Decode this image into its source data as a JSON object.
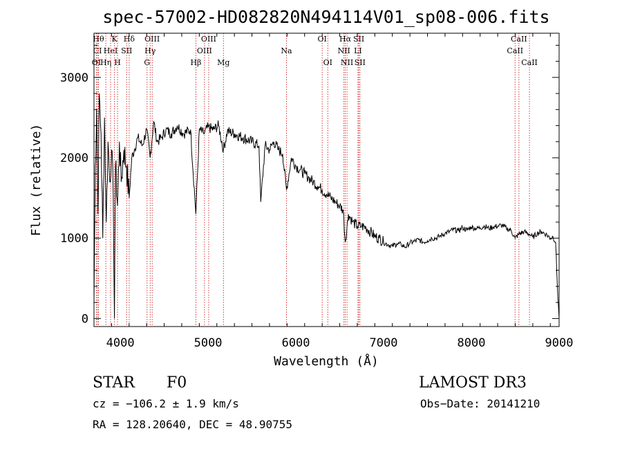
{
  "chart_data": {
    "type": "line",
    "title": "spec-57002-HD082820N494114V01_sp08-006.fits",
    "xlabel": "Wavelength (Å)",
    "ylabel": "Flux (relative)",
    "xlim": [
      3700,
      9000
    ],
    "ylim": [
      -100,
      3550
    ],
    "xticks": [
      4000,
      5000,
      6000,
      7000,
      8000,
      9000
    ],
    "yticks": [
      0,
      1000,
      2000,
      3000
    ],
    "series": [
      {
        "name": "spectrum",
        "x": [
          3700,
          3715,
          3730,
          3745,
          3760,
          3780,
          3800,
          3820,
          3840,
          3860,
          3880,
          3900,
          3920,
          3933,
          3945,
          3968,
          3990,
          4010,
          4040,
          4070,
          4101,
          4130,
          4160,
          4200,
          4250,
          4300,
          4340,
          4380,
          4420,
          4470,
          4520,
          4580,
          4650,
          4720,
          4800,
          4861,
          4900,
          4950,
          5000,
          5060,
          5120,
          5175,
          5220,
          5300,
          5400,
          5500,
          5580,
          5600,
          5650,
          5700,
          5750,
          5800,
          5850,
          5893,
          5950,
          6000,
          6050,
          6100,
          6150,
          6200,
          6250,
          6300,
          6350,
          6400,
          6450,
          6500,
          6540,
          6563,
          6600,
          6650,
          6700,
          6750,
          6800,
          6850,
          6900,
          6950,
          7000,
          7050,
          7100,
          7150,
          7200,
          7250,
          7300,
          7350,
          7400,
          7450,
          7500,
          7550,
          7600,
          7650,
          7700,
          7750,
          7800,
          7850,
          7900,
          7950,
          8000,
          8050,
          8100,
          8150,
          8200,
          8250,
          8300,
          8350,
          8400,
          8450,
          8498,
          8542,
          8600,
          8662,
          8700,
          8750,
          8800,
          8850,
          8900,
          8930,
          8960,
          8980,
          9000
        ],
        "values": [
          200,
          1900,
          2600,
          1300,
          2800,
          2300,
          1000,
          2500,
          1200,
          2200,
          1700,
          2100,
          1500,
          0,
          1900,
          1400,
          2200,
          1700,
          2100,
          1900,
          1500,
          2000,
          2100,
          2250,
          2150,
          2350,
          2000,
          2450,
          2200,
          2250,
          2350,
          2300,
          2400,
          2300,
          2350,
          1300,
          2350,
          2300,
          2380,
          2350,
          2400,
          2100,
          2330,
          2300,
          2250,
          2200,
          2150,
          1450,
          2150,
          2100,
          2200,
          2100,
          2050,
          1600,
          2000,
          1900,
          1850,
          1800,
          1750,
          1700,
          1650,
          1600,
          1550,
          1500,
          1450,
          1400,
          1350,
          950,
          1300,
          1200,
          1150,
          1150,
          1130,
          1080,
          1020,
          1000,
          950,
          920,
          900,
          930,
          920,
          890,
          940,
          960,
          980,
          950,
          970,
          1000,
          1000,
          1030,
          1060,
          1080,
          1110,
          1090,
          1130,
          1100,
          1140,
          1120,
          1130,
          1150,
          1120,
          1140,
          1150,
          1160,
          1120,
          1100,
          1000,
          1050,
          1080,
          1050,
          1010,
          1060,
          1080,
          1050,
          1000,
          1020,
          950,
          400,
          0
        ]
      }
    ],
    "lines": [
      {
        "name": "OI",
        "x": 3727,
        "row": 2
      },
      {
        "name": "CI",
        "x": 3740,
        "row": 1
      },
      {
        "name": "Hθ",
        "x": 3751,
        "row": 0
      },
      {
        "name": "Hη",
        "x": 3835,
        "row": 2
      },
      {
        "name": "HeI",
        "x": 3889,
        "row": 1
      },
      {
        "name": "K",
        "x": 3933,
        "row": 0
      },
      {
        "name": "H",
        "x": 3968,
        "row": 2
      },
      {
        "name": "SII",
        "x": 4072,
        "row": 1
      },
      {
        "name": "Hδ",
        "x": 4101,
        "row": 0
      },
      {
        "name": "G",
        "x": 4305,
        "row": 2
      },
      {
        "name": "Hγ",
        "x": 4340,
        "row": 1
      },
      {
        "name": "OIII",
        "x": 4363,
        "row": 0
      },
      {
        "name": "Hβ",
        "x": 4861,
        "row": 2
      },
      {
        "name": "OIII",
        "x": 4959,
        "row": 1
      },
      {
        "name": "OIII",
        "x": 5007,
        "row": 0
      },
      {
        "name": "Mg",
        "x": 5175,
        "row": 2
      },
      {
        "name": "Na",
        "x": 5893,
        "row": 1
      },
      {
        "name": "OI",
        "x": 6300,
        "row": 0
      },
      {
        "name": "OI",
        "x": 6364,
        "row": 2
      },
      {
        "name": "NII",
        "x": 6548,
        "row": 1
      },
      {
        "name": "Hα",
        "x": 6563,
        "row": 0
      },
      {
        "name": "NII",
        "x": 6583,
        "row": 2
      },
      {
        "name": "LI",
        "x": 6708,
        "row": 1
      },
      {
        "name": "SII",
        "x": 6717,
        "row": 0
      },
      {
        "name": "SII",
        "x": 6731,
        "row": 2
      },
      {
        "name": "CaII",
        "x": 8498,
        "row": 1
      },
      {
        "name": "CaII",
        "x": 8542,
        "row": 0
      },
      {
        "name": "CaII",
        "x": 8662,
        "row": 2
      }
    ]
  },
  "info": {
    "class": "STAR",
    "subclass": "F0",
    "survey": "LAMOST DR3",
    "cz": "cz = −106.2 ± 1.9 km/s",
    "obsdate": "Obs−Date: 20141210",
    "radec": "RA = 128.20640, DEC =  48.90755"
  },
  "colors": {
    "spectrum": "#000000",
    "linemarker": "#cc0000"
  }
}
